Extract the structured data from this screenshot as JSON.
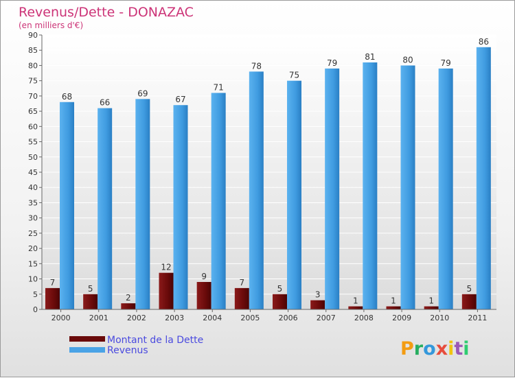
{
  "chart_data": {
    "type": "bar",
    "title": "Revenus/Dette - DONAZAC",
    "subtitle": "(en milliers d'€)",
    "categories": [
      "2000",
      "2001",
      "2002",
      "2003",
      "2004",
      "2005",
      "2006",
      "2007",
      "2008",
      "2009",
      "2010",
      "2011"
    ],
    "series": [
      {
        "name": "Montant de la Dette",
        "values": [
          7,
          5,
          2,
          12,
          9,
          7,
          5,
          3,
          1,
          1,
          1,
          5
        ],
        "color": "#7a1010"
      },
      {
        "name": "Revenus",
        "values": [
          68,
          66,
          69,
          67,
          71,
          78,
          75,
          79,
          81,
          80,
          79,
          86
        ],
        "color": "#4aa3e6"
      }
    ],
    "ylim": [
      0,
      90
    ],
    "yticks": [
      0,
      5,
      10,
      15,
      20,
      25,
      30,
      35,
      40,
      45,
      50,
      55,
      60,
      65,
      70,
      75,
      80,
      85,
      90
    ],
    "grid": true,
    "legend_position": "bottom-left"
  },
  "logo": {
    "text": "Proxiti"
  }
}
